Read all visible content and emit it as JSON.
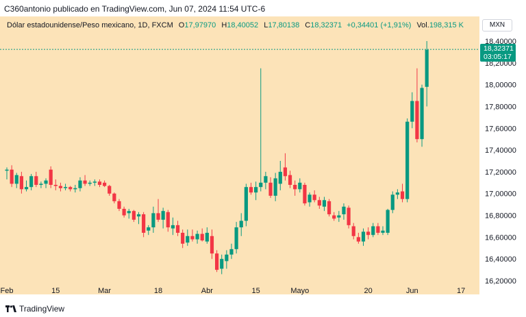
{
  "header": {
    "publisher_line": "C360antonio publicado en TradingView.com, Jun 07, 2024 11:54 UTC-6"
  },
  "legend": {
    "symbol": "Dólar estadounidense/Peso mexicano, 1D, FXCM",
    "open_label": "O",
    "open": "17,97970",
    "high_label": "H",
    "high": "18,40052",
    "low_label": "L",
    "low": "17,80138",
    "close_label": "C",
    "close": "18,32371",
    "change": "+0,34401 (+1,91%)",
    "volume_label": "Vol.",
    "volume": "198,315 K"
  },
  "currency_badge": "MXN",
  "last_price_tag": {
    "price": "18,32371",
    "countdown": "03:05:17"
  },
  "footer": {
    "brand": "TradingView"
  },
  "colors": {
    "up": "#089981",
    "down": "#f23645",
    "panel": "#fce3b8",
    "last_line": "#089981"
  },
  "chart_data": {
    "type": "candlestick",
    "title": "Dólar estadounidense/Peso mexicano, 1D, FXCM",
    "ylim": [
      16.1,
      18.5
    ],
    "y_ticks": [
      "16,20000",
      "16,40000",
      "16,60000",
      "16,80000",
      "17,00000",
      "17,20000",
      "17,40000",
      "17,60000",
      "17,80000",
      "18,00000",
      "18,20000",
      "18,40000"
    ],
    "y_tick_values": [
      16.2,
      16.4,
      16.6,
      16.8,
      17.0,
      17.2,
      17.4,
      17.6,
      17.8,
      18.0,
      18.2,
      18.4
    ],
    "x_ticks": [
      {
        "label": "Feb",
        "index": 0
      },
      {
        "label": "15",
        "index": 10
      },
      {
        "label": "Mar",
        "index": 20
      },
      {
        "label": "18",
        "index": 31
      },
      {
        "label": "Abr",
        "index": 41
      },
      {
        "label": "15",
        "index": 51
      },
      {
        "label": "Mayo",
        "index": 60
      },
      {
        "label": "20",
        "index": 74
      },
      {
        "label": "Jun",
        "index": 83
      },
      {
        "label": "17",
        "index": 93
      }
    ],
    "last_price": 18.32371,
    "candles": [
      {
        "o": 17.21,
        "h": 17.24,
        "l": 17.13,
        "c": 17.22
      },
      {
        "o": 17.22,
        "h": 17.26,
        "l": 17.06,
        "c": 17.09
      },
      {
        "o": 17.09,
        "h": 17.19,
        "l": 17.05,
        "c": 17.17
      },
      {
        "o": 17.16,
        "h": 17.2,
        "l": 17.0,
        "c": 17.04
      },
      {
        "o": 17.04,
        "h": 17.12,
        "l": 17.02,
        "c": 17.06
      },
      {
        "o": 17.06,
        "h": 17.18,
        "l": 17.03,
        "c": 17.16
      },
      {
        "o": 17.16,
        "h": 17.2,
        "l": 17.06,
        "c": 17.08
      },
      {
        "o": 17.08,
        "h": 17.11,
        "l": 17.05,
        "c": 17.09
      },
      {
        "o": 17.09,
        "h": 17.14,
        "l": 17.05,
        "c": 17.12
      },
      {
        "o": 17.22,
        "h": 17.25,
        "l": 17.05,
        "c": 17.08
      },
      {
        "o": 17.08,
        "h": 17.13,
        "l": 17.03,
        "c": 17.07
      },
      {
        "o": 17.07,
        "h": 17.1,
        "l": 17.02,
        "c": 17.05
      },
      {
        "o": 17.05,
        "h": 17.09,
        "l": 17.03,
        "c": 17.06
      },
      {
        "o": 17.06,
        "h": 17.07,
        "l": 17.02,
        "c": 17.04
      },
      {
        "o": 17.04,
        "h": 17.08,
        "l": 17.01,
        "c": 17.05
      },
      {
        "o": 17.05,
        "h": 17.15,
        "l": 17.02,
        "c": 17.12
      },
      {
        "o": 17.12,
        "h": 17.17,
        "l": 17.07,
        "c": 17.09
      },
      {
        "o": 17.09,
        "h": 17.12,
        "l": 17.07,
        "c": 17.1
      },
      {
        "o": 17.1,
        "h": 17.13,
        "l": 17.07,
        "c": 17.11
      },
      {
        "o": 17.11,
        "h": 17.13,
        "l": 17.06,
        "c": 17.08
      },
      {
        "o": 17.1,
        "h": 17.12,
        "l": 17.06,
        "c": 17.07
      },
      {
        "o": 17.07,
        "h": 17.08,
        "l": 16.98,
        "c": 17.0
      },
      {
        "o": 17.0,
        "h": 17.01,
        "l": 16.91,
        "c": 16.93
      },
      {
        "o": 16.93,
        "h": 16.95,
        "l": 16.84,
        "c": 16.86
      },
      {
        "o": 16.86,
        "h": 16.88,
        "l": 16.78,
        "c": 16.8
      },
      {
        "o": 16.82,
        "h": 16.86,
        "l": 16.77,
        "c": 16.84
      },
      {
        "o": 16.84,
        "h": 16.85,
        "l": 16.74,
        "c": 16.76
      },
      {
        "o": 16.79,
        "h": 16.83,
        "l": 16.72,
        "c": 16.81
      },
      {
        "o": 16.81,
        "h": 16.83,
        "l": 16.6,
        "c": 16.64
      },
      {
        "o": 16.66,
        "h": 16.71,
        "l": 16.62,
        "c": 16.69
      },
      {
        "o": 16.69,
        "h": 16.88,
        "l": 16.64,
        "c": 16.82
      },
      {
        "o": 16.82,
        "h": 16.95,
        "l": 16.74,
        "c": 16.76
      },
      {
        "o": 16.76,
        "h": 16.87,
        "l": 16.68,
        "c": 16.84
      },
      {
        "o": 16.83,
        "h": 16.85,
        "l": 16.65,
        "c": 16.69
      },
      {
        "o": 16.68,
        "h": 16.78,
        "l": 16.62,
        "c": 16.71
      },
      {
        "o": 16.71,
        "h": 16.75,
        "l": 16.61,
        "c": 16.64
      },
      {
        "o": 16.64,
        "h": 16.67,
        "l": 16.5,
        "c": 16.54
      },
      {
        "o": 16.55,
        "h": 16.67,
        "l": 16.52,
        "c": 16.61
      },
      {
        "o": 16.61,
        "h": 16.67,
        "l": 16.56,
        "c": 16.58
      },
      {
        "o": 16.58,
        "h": 16.66,
        "l": 16.54,
        "c": 16.63
      },
      {
        "o": 16.63,
        "h": 16.68,
        "l": 16.56,
        "c": 16.57
      },
      {
        "o": 16.56,
        "h": 16.69,
        "l": 16.54,
        "c": 16.64
      },
      {
        "o": 16.61,
        "h": 16.67,
        "l": 16.4,
        "c": 16.45
      },
      {
        "o": 16.45,
        "h": 16.48,
        "l": 16.28,
        "c": 16.3
      },
      {
        "o": 16.31,
        "h": 16.44,
        "l": 16.26,
        "c": 16.4
      },
      {
        "o": 16.38,
        "h": 16.48,
        "l": 16.31,
        "c": 16.44
      },
      {
        "o": 16.44,
        "h": 16.54,
        "l": 16.4,
        "c": 16.49
      },
      {
        "o": 16.49,
        "h": 16.74,
        "l": 16.45,
        "c": 16.69
      },
      {
        "o": 16.69,
        "h": 16.82,
        "l": 16.61,
        "c": 16.75
      },
      {
        "o": 16.75,
        "h": 17.09,
        "l": 16.7,
        "c": 17.06
      },
      {
        "o": 17.06,
        "h": 17.1,
        "l": 16.99,
        "c": 17.01
      },
      {
        "o": 17.01,
        "h": 17.11,
        "l": 16.94,
        "c": 17.06
      },
      {
        "o": 17.06,
        "h": 18.15,
        "l": 17.02,
        "c": 17.1
      },
      {
        "o": 17.1,
        "h": 17.2,
        "l": 17.04,
        "c": 17.16
      },
      {
        "o": 17.1,
        "h": 17.15,
        "l": 16.96,
        "c": 16.98
      },
      {
        "o": 16.98,
        "h": 17.19,
        "l": 16.93,
        "c": 17.14
      },
      {
        "o": 17.09,
        "h": 17.3,
        "l": 17.03,
        "c": 17.2
      },
      {
        "o": 17.24,
        "h": 17.37,
        "l": 17.12,
        "c": 17.16
      },
      {
        "o": 17.17,
        "h": 17.21,
        "l": 17.05,
        "c": 17.08
      },
      {
        "o": 17.08,
        "h": 17.12,
        "l": 16.98,
        "c": 17.04
      },
      {
        "o": 17.04,
        "h": 17.14,
        "l": 17.01,
        "c": 17.1
      },
      {
        "o": 17.08,
        "h": 17.1,
        "l": 16.89,
        "c": 16.91
      },
      {
        "o": 16.92,
        "h": 17.01,
        "l": 16.88,
        "c": 16.99
      },
      {
        "o": 16.99,
        "h": 17.03,
        "l": 16.92,
        "c": 16.94
      },
      {
        "o": 16.94,
        "h": 16.97,
        "l": 16.86,
        "c": 16.89
      },
      {
        "o": 16.88,
        "h": 16.97,
        "l": 16.84,
        "c": 16.94
      },
      {
        "o": 16.93,
        "h": 16.95,
        "l": 16.79,
        "c": 16.81
      },
      {
        "o": 16.8,
        "h": 16.83,
        "l": 16.75,
        "c": 16.77
      },
      {
        "o": 16.78,
        "h": 16.84,
        "l": 16.74,
        "c": 16.8
      },
      {
        "o": 16.81,
        "h": 16.91,
        "l": 16.76,
        "c": 16.88
      },
      {
        "o": 16.87,
        "h": 16.89,
        "l": 16.68,
        "c": 16.71
      },
      {
        "o": 16.7,
        "h": 16.73,
        "l": 16.58,
        "c": 16.61
      },
      {
        "o": 16.6,
        "h": 16.64,
        "l": 16.54,
        "c": 16.56
      },
      {
        "o": 16.56,
        "h": 16.68,
        "l": 16.52,
        "c": 16.65
      },
      {
        "o": 16.65,
        "h": 16.69,
        "l": 16.58,
        "c": 16.62
      },
      {
        "o": 16.62,
        "h": 16.73,
        "l": 16.6,
        "c": 16.7
      },
      {
        "o": 16.7,
        "h": 16.73,
        "l": 16.62,
        "c": 16.64
      },
      {
        "o": 16.64,
        "h": 16.7,
        "l": 16.62,
        "c": 16.66
      },
      {
        "o": 16.64,
        "h": 16.86,
        "l": 16.62,
        "c": 16.85
      },
      {
        "o": 16.85,
        "h": 17.02,
        "l": 16.82,
        "c": 16.99
      },
      {
        "o": 16.99,
        "h": 17.04,
        "l": 16.95,
        "c": 17.01
      },
      {
        "o": 17.02,
        "h": 17.09,
        "l": 16.92,
        "c": 16.95
      },
      {
        "o": 16.95,
        "h": 17.69,
        "l": 16.92,
        "c": 17.66
      },
      {
        "o": 17.66,
        "h": 17.93,
        "l": 17.6,
        "c": 17.85
      },
      {
        "o": 17.85,
        "h": 18.15,
        "l": 17.47,
        "c": 17.5
      },
      {
        "o": 17.5,
        "h": 18.0,
        "l": 17.43,
        "c": 17.97
      },
      {
        "o": 17.98,
        "h": 18.4,
        "l": 17.8,
        "c": 18.32
      }
    ]
  }
}
